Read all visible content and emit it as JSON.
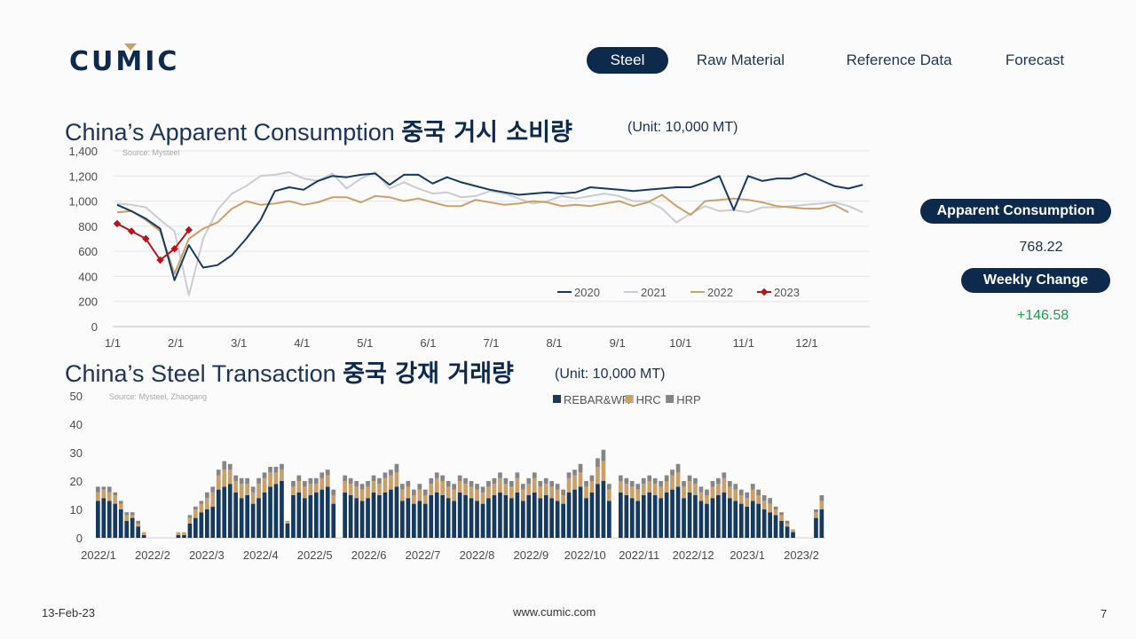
{
  "logo": {
    "text_before": "CU",
    "text_m": "M",
    "text_after": "IC"
  },
  "nav": {
    "tabs": [
      {
        "label": "Steel",
        "active": true
      },
      {
        "label": "Raw Material"
      },
      {
        "label": "Reference Data"
      },
      {
        "label": "Forecast"
      }
    ]
  },
  "titles": {
    "consumption": {
      "en": "China’s Apparent Consumption",
      "ko": "중국 거시 소비량",
      "unit": "(Unit: 10,000 MT)"
    },
    "transaction": {
      "en": "China’s Steel Transaction",
      "ko": "중국 강재 거래량",
      "unit": "(Unit: 10,000 MT)"
    }
  },
  "side": {
    "apparent_label": "Apparent Consumption",
    "apparent_value": "768.22",
    "weekly_label": "Weekly Change",
    "weekly_value": "+146.58",
    "positive_color": "#1f9e4a"
  },
  "footer": {
    "date": "13-Feb-23",
    "url": "www.cumic.com",
    "page": "7"
  },
  "colors": {
    "navy": "#0d2a4d",
    "gold": "#c9a25e",
    "s2020": "#163a5f",
    "s2021": "#c9ccd2",
    "s2022": "#c9a06a",
    "s2023": "#b3151b",
    "hrp": "#858585"
  },
  "chart_data": [
    {
      "type": "line",
      "source": "Source: Mysteel",
      "ylim": [
        0,
        1400
      ],
      "yticks": [
        "0",
        "200",
        "400",
        "600",
        "800",
        "1,000",
        "1,200",
        "1,400"
      ],
      "xticks": [
        "1/1",
        "2/1",
        "3/1",
        "4/1",
        "5/1",
        "6/1",
        "7/1",
        "8/1",
        "9/1",
        "10/1",
        "11/1",
        "12/1"
      ],
      "grid": true,
      "legend": "inside-bottom-right",
      "series": [
        {
          "name": "2020",
          "values": [
            970,
            920,
            860,
            780,
            370,
            650,
            470,
            490,
            570,
            700,
            850,
            1080,
            1110,
            1090,
            1160,
            1200,
            1190,
            1210,
            1220,
            1130,
            1210,
            1210,
            1140,
            1190,
            1150,
            1120,
            1090,
            1070,
            1050,
            1060,
            1070,
            1060,
            1070,
            1110,
            1100,
            1090,
            1080,
            1090,
            1100,
            1110,
            1110,
            1150,
            1200,
            930,
            1200,
            1160,
            1180,
            1180,
            1220,
            1170,
            1120,
            1100,
            1130
          ]
        },
        {
          "name": "2021",
          "values": [
            980,
            970,
            950,
            850,
            760,
            250,
            700,
            930,
            1060,
            1120,
            1200,
            1210,
            1230,
            1180,
            1160,
            1220,
            1100,
            1180,
            1230,
            1100,
            1150,
            1100,
            1060,
            1070,
            1030,
            1040,
            1080,
            1060,
            1020,
            980,
            1000,
            1040,
            1020,
            1040,
            1060,
            1040,
            1000,
            1000,
            940,
            830,
            900,
            960,
            920,
            930,
            910,
            950,
            950,
            960,
            970,
            980,
            990,
            960,
            910
          ]
        },
        {
          "name": "2022",
          "values": [
            910,
            920,
            850,
            760,
            420,
            700,
            780,
            830,
            940,
            1000,
            970,
            980,
            1000,
            970,
            990,
            1030,
            1030,
            990,
            1040,
            1030,
            1000,
            1020,
            990,
            960,
            960,
            1010,
            990,
            970,
            980,
            1000,
            990,
            960,
            970,
            960,
            980,
            1000,
            960,
            990,
            1050,
            960,
            890,
            1000,
            1010,
            1020,
            1010,
            990,
            960,
            950,
            940,
            940,
            970,
            910
          ]
        },
        {
          "name": "2023",
          "values": [
            820,
            760,
            700,
            530,
            620,
            770
          ]
        }
      ]
    },
    {
      "type": "bar",
      "stacked": true,
      "source": "Source: Mysteel, Zhaogang",
      "ylim": [
        0,
        50
      ],
      "yticks": [
        "0",
        "10",
        "20",
        "30",
        "40",
        "50"
      ],
      "xticks": [
        "2022/1",
        "2022/2",
        "2022/3",
        "2022/4",
        "2022/5",
        "2022/6",
        "2022/7",
        "2022/8",
        "2022/9",
        "2022/10",
        "2022/11",
        "2022/12",
        "2023/1",
        "2023/2"
      ],
      "legend": "top-right",
      "series": [
        {
          "name": "REBAR&WR",
          "values": [
            13,
            14,
            13,
            12,
            10,
            6,
            7,
            4,
            1,
            0,
            0,
            0,
            0,
            0,
            1,
            1,
            5,
            7,
            9,
            10,
            11,
            17,
            18,
            19,
            16,
            14,
            15,
            12,
            14,
            16,
            18,
            19,
            20,
            5,
            15,
            16,
            14,
            15,
            16,
            17,
            18,
            12,
            0,
            16,
            15,
            14,
            13,
            14,
            16,
            15,
            16,
            17,
            18,
            13,
            14,
            12,
            13,
            12,
            15,
            16,
            15,
            14,
            13,
            16,
            15,
            14,
            13,
            12,
            14,
            15,
            16,
            15,
            14,
            16,
            13,
            15,
            16,
            14,
            15,
            14,
            13,
            12,
            16,
            17,
            18,
            14,
            16,
            19,
            20,
            13,
            0,
            16,
            15,
            14,
            13,
            15,
            16,
            15,
            14,
            16,
            17,
            18,
            14,
            16,
            15,
            13,
            12,
            14,
            15,
            16,
            14,
            13,
            12,
            11,
            13,
            12,
            10,
            9,
            8,
            6,
            4,
            2,
            0,
            0,
            0,
            7,
            10
          ]
        },
        {
          "name": "HRC",
          "values": [
            3,
            3,
            3,
            3,
            2,
            2,
            1,
            1,
            1,
            0,
            0,
            0,
            0,
            0,
            1,
            1,
            2,
            3,
            3,
            4,
            5,
            5,
            6,
            5,
            4,
            5,
            4,
            4,
            5,
            5,
            5,
            4,
            4,
            1,
            3,
            4,
            4,
            4,
            3,
            4,
            4,
            3,
            0,
            4,
            4,
            4,
            4,
            4,
            4,
            4,
            5,
            5,
            5,
            4,
            4,
            3,
            4,
            3,
            4,
            5,
            5,
            4,
            4,
            4,
            4,
            4,
            4,
            4,
            4,
            4,
            5,
            4,
            4,
            5,
            4,
            4,
            5,
            4,
            4,
            4,
            4,
            3,
            5,
            5,
            5,
            4,
            4,
            6,
            7,
            4,
            0,
            4,
            4,
            4,
            4,
            4,
            4,
            4,
            4,
            4,
            5,
            5,
            4,
            4,
            4,
            3,
            3,
            4,
            4,
            5,
            4,
            4,
            3,
            3,
            4,
            3,
            3,
            3,
            2,
            2,
            1,
            1,
            0,
            0,
            0,
            2,
            3
          ]
        },
        {
          "name": "HRP",
          "values": [
            2,
            1,
            2,
            1,
            1,
            1,
            1,
            1,
            0,
            0,
            0,
            0,
            0,
            0,
            0,
            0,
            1,
            1,
            1,
            2,
            2,
            2,
            3,
            2,
            2,
            2,
            2,
            2,
            2,
            2,
            2,
            2,
            2,
            0,
            2,
            2,
            2,
            2,
            2,
            2,
            2,
            2,
            0,
            2,
            2,
            2,
            2,
            2,
            2,
            2,
            2,
            2,
            3,
            2,
            2,
            2,
            2,
            2,
            2,
            2,
            2,
            2,
            2,
            2,
            2,
            2,
            2,
            2,
            2,
            2,
            2,
            2,
            2,
            2,
            2,
            2,
            2,
            2,
            2,
            2,
            2,
            2,
            2,
            2,
            3,
            2,
            2,
            3,
            4,
            2,
            0,
            2,
            2,
            2,
            2,
            2,
            2,
            2,
            2,
            2,
            2,
            3,
            2,
            2,
            2,
            2,
            2,
            2,
            2,
            2,
            2,
            2,
            2,
            2,
            2,
            2,
            2,
            2,
            1,
            1,
            1,
            0,
            0,
            0,
            0,
            1,
            2
          ]
        }
      ]
    }
  ]
}
